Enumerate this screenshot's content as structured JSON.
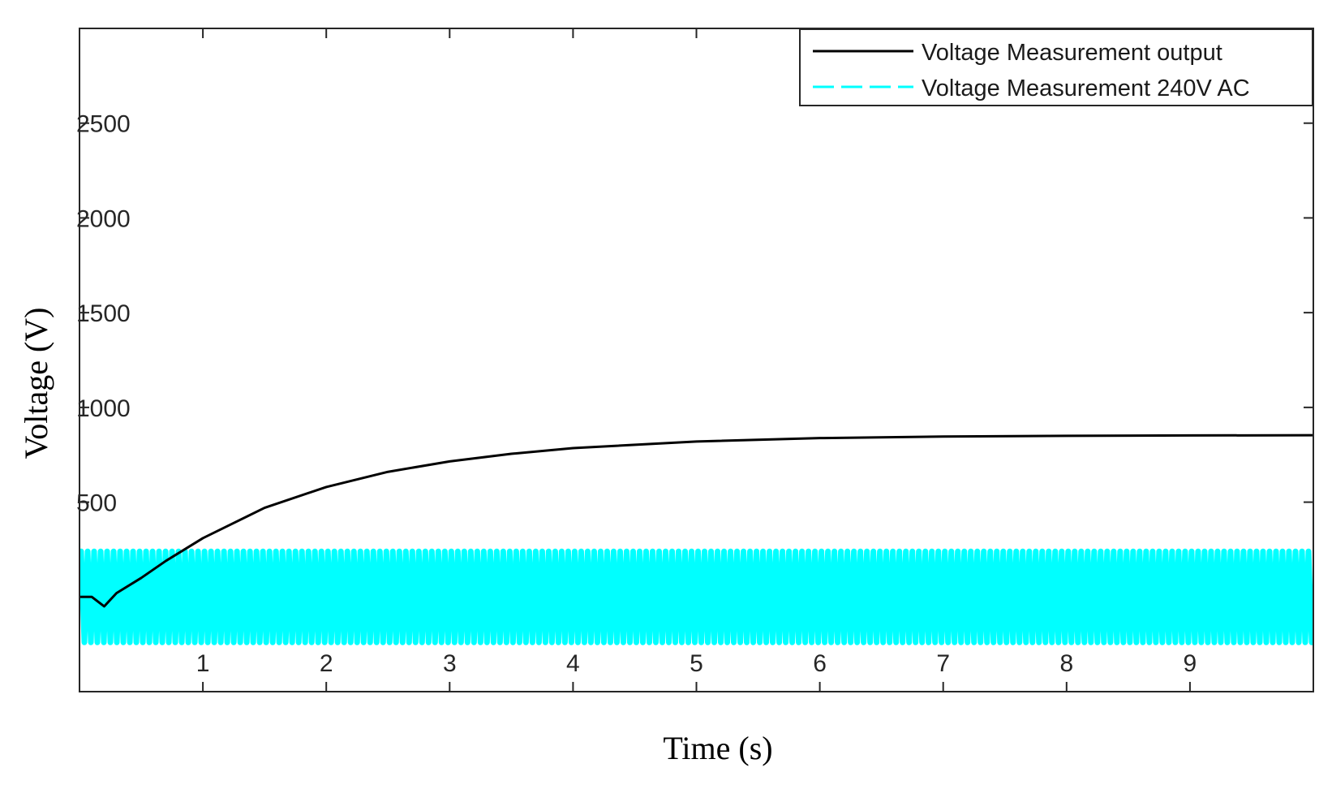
{
  "chart_data": {
    "type": "line",
    "title": "",
    "xlabel": "Time (s)",
    "ylabel": "Voltage (V)",
    "xlim": [
      0,
      10
    ],
    "ylim": [
      -500,
      3000
    ],
    "xticks": [
      1,
      2,
      3,
      4,
      5,
      6,
      7,
      8,
      9
    ],
    "yticks": [
      500,
      1000,
      1500,
      2000,
      2500
    ],
    "grid": false,
    "legend_position": "top-right",
    "series": [
      {
        "name": "Voltage Measurement output",
        "style": "solid",
        "color": "#000000",
        "x": [
          0,
          0.1,
          0.2,
          0.3,
          0.5,
          0.7,
          1,
          1.5,
          2,
          2.5,
          3,
          3.5,
          4,
          5,
          6,
          7,
          8,
          9,
          10
        ],
        "values": [
          0,
          0,
          -50,
          20,
          100,
          190,
          310,
          470,
          580,
          660,
          715,
          755,
          785,
          820,
          838,
          846,
          850,
          852,
          853
        ]
      },
      {
        "name": "Voltage Measurement 240V AC",
        "style": "dashed",
        "color": "#00ffff",
        "signal": "sinusoid",
        "amplitude": 240,
        "offset": 0,
        "x_range": [
          0,
          10
        ]
      }
    ]
  }
}
